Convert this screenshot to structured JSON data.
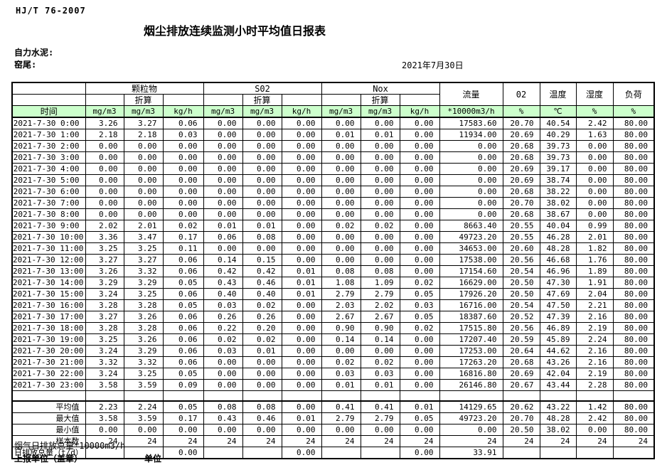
{
  "page": {
    "standard_code": "HJ/T  76-2007",
    "title": "烟尘排放连续监测小时平均值日报表",
    "company_label": "自力水泥:",
    "site_label": "窑尾:",
    "date": "2021年7月30日",
    "footnote": "烟气日排放总量*10000m3/h",
    "report_unit_label": "上报单位（盖章）",
    "unit_label": "单位"
  },
  "table": {
    "time_header": "时间",
    "groups": [
      {
        "label": "颗粒物"
      },
      {
        "label": "S02"
      },
      {
        "label": "Nox"
      }
    ],
    "zhesuan_label": "折算",
    "single_columns": [
      "流量",
      "02",
      "温度",
      "湿度",
      "负荷"
    ],
    "units": [
      "mg/m3",
      "mg/m3",
      "kg/h",
      "mg/m3",
      "mg/m3",
      "kg/h",
      "mg/m3",
      "mg/m3",
      "kg/h",
      "*10000m3/h",
      "%",
      "℃",
      "%",
      "%"
    ],
    "header_bg": "#ccffcc",
    "rows": [
      {
        "time": "2021-7-30 0:00",
        "values": [
          "3.26",
          "3.27",
          "0.06",
          "0.00",
          "0.00",
          "0.00",
          "0.00",
          "0.00",
          "0.00",
          "17583.60",
          "20.70",
          "40.54",
          "2.42",
          "80.00"
        ]
      },
      {
        "time": "2021-7-30 1:00",
        "values": [
          "2.18",
          "2.18",
          "0.03",
          "0.00",
          "0.00",
          "0.00",
          "0.01",
          "0.01",
          "0.00",
          "11934.00",
          "20.69",
          "40.29",
          "1.63",
          "80.00"
        ]
      },
      {
        "time": "2021-7-30 2:00",
        "values": [
          "0.00",
          "0.00",
          "0.00",
          "0.00",
          "0.00",
          "0.00",
          "0.00",
          "0.00",
          "0.00",
          "0.00",
          "20.68",
          "39.73",
          "0.00",
          "80.00"
        ]
      },
      {
        "time": "2021-7-30 3:00",
        "values": [
          "0.00",
          "0.00",
          "0.00",
          "0.00",
          "0.00",
          "0.00",
          "0.00",
          "0.00",
          "0.00",
          "0.00",
          "20.68",
          "39.73",
          "0.00",
          "80.00"
        ]
      },
      {
        "time": "2021-7-30 4:00",
        "values": [
          "0.00",
          "0.00",
          "0.00",
          "0.00",
          "0.00",
          "0.00",
          "0.00",
          "0.00",
          "0.00",
          "0.00",
          "20.69",
          "39.17",
          "0.00",
          "80.00"
        ]
      },
      {
        "time": "2021-7-30 5:00",
        "values": [
          "0.00",
          "0.00",
          "0.00",
          "0.00",
          "0.00",
          "0.00",
          "0.00",
          "0.00",
          "0.00",
          "0.00",
          "20.69",
          "38.74",
          "0.00",
          "80.00"
        ]
      },
      {
        "time": "2021-7-30 6:00",
        "values": [
          "0.00",
          "0.00",
          "0.00",
          "0.00",
          "0.00",
          "0.00",
          "0.00",
          "0.00",
          "0.00",
          "0.00",
          "20.68",
          "38.22",
          "0.00",
          "80.00"
        ]
      },
      {
        "time": "2021-7-30 7:00",
        "values": [
          "0.00",
          "0.00",
          "0.00",
          "0.00",
          "0.00",
          "0.00",
          "0.00",
          "0.00",
          "0.00",
          "0.00",
          "20.70",
          "38.02",
          "0.00",
          "80.00"
        ]
      },
      {
        "time": "2021-7-30 8:00",
        "values": [
          "0.00",
          "0.00",
          "0.00",
          "0.00",
          "0.00",
          "0.00",
          "0.00",
          "0.00",
          "0.00",
          "0.00",
          "20.68",
          "38.67",
          "0.00",
          "80.00"
        ]
      },
      {
        "time": "2021-7-30 9:00",
        "values": [
          "2.02",
          "2.01",
          "0.02",
          "0.01",
          "0.01",
          "0.00",
          "0.02",
          "0.02",
          "0.00",
          "8663.40",
          "20.55",
          "40.04",
          "0.99",
          "80.00"
        ]
      },
      {
        "time": "2021-7-30 10:00",
        "values": [
          "3.36",
          "3.47",
          "0.17",
          "0.06",
          "0.08",
          "0.00",
          "0.00",
          "0.00",
          "0.00",
          "49723.20",
          "20.55",
          "46.28",
          "2.01",
          "80.00"
        ]
      },
      {
        "time": "2021-7-30 11:00",
        "values": [
          "3.25",
          "3.25",
          "0.11",
          "0.00",
          "0.00",
          "0.00",
          "0.00",
          "0.00",
          "0.00",
          "34653.00",
          "20.60",
          "48.28",
          "1.82",
          "80.00"
        ]
      },
      {
        "time": "2021-7-30 12:00",
        "values": [
          "3.27",
          "3.27",
          "0.06",
          "0.14",
          "0.15",
          "0.00",
          "0.00",
          "0.00",
          "0.00",
          "17538.00",
          "20.56",
          "46.68",
          "1.76",
          "80.00"
        ]
      },
      {
        "time": "2021-7-30 13:00",
        "values": [
          "3.26",
          "3.32",
          "0.06",
          "0.42",
          "0.42",
          "0.01",
          "0.08",
          "0.08",
          "0.00",
          "17154.60",
          "20.54",
          "46.96",
          "1.89",
          "80.00"
        ]
      },
      {
        "time": "2021-7-30 14:00",
        "values": [
          "3.29",
          "3.29",
          "0.05",
          "0.43",
          "0.46",
          "0.01",
          "1.08",
          "1.09",
          "0.02",
          "16629.00",
          "20.50",
          "47.30",
          "1.91",
          "80.00"
        ]
      },
      {
        "time": "2021-7-30 15:00",
        "values": [
          "3.24",
          "3.25",
          "0.06",
          "0.40",
          "0.40",
          "0.01",
          "2.79",
          "2.79",
          "0.05",
          "17926.20",
          "20.50",
          "47.69",
          "2.04",
          "80.00"
        ]
      },
      {
        "time": "2021-7-30 16:00",
        "values": [
          "3.28",
          "3.28",
          "0.05",
          "0.03",
          "0.02",
          "0.00",
          "2.03",
          "2.02",
          "0.03",
          "16716.00",
          "20.54",
          "47.50",
          "2.21",
          "80.00"
        ]
      },
      {
        "time": "2021-7-30 17:00",
        "values": [
          "3.27",
          "3.26",
          "0.06",
          "0.26",
          "0.26",
          "0.00",
          "2.67",
          "2.67",
          "0.05",
          "18387.60",
          "20.52",
          "47.39",
          "2.16",
          "80.00"
        ]
      },
      {
        "time": "2021-7-30 18:00",
        "values": [
          "3.28",
          "3.28",
          "0.06",
          "0.22",
          "0.20",
          "0.00",
          "0.90",
          "0.90",
          "0.02",
          "17515.80",
          "20.56",
          "46.89",
          "2.19",
          "80.00"
        ]
      },
      {
        "time": "2021-7-30 19:00",
        "values": [
          "3.25",
          "3.26",
          "0.06",
          "0.02",
          "0.02",
          "0.00",
          "0.14",
          "0.14",
          "0.00",
          "17207.40",
          "20.59",
          "45.89",
          "2.24",
          "80.00"
        ]
      },
      {
        "time": "2021-7-30 20:00",
        "values": [
          "3.24",
          "3.29",
          "0.06",
          "0.03",
          "0.01",
          "0.00",
          "0.00",
          "0.00",
          "0.00",
          "17253.00",
          "20.64",
          "44.62",
          "2.16",
          "80.00"
        ]
      },
      {
        "time": "2021-7-30 21:00",
        "values": [
          "3.32",
          "3.32",
          "0.06",
          "0.00",
          "0.00",
          "0.00",
          "0.02",
          "0.02",
          "0.00",
          "17263.20",
          "20.68",
          "43.26",
          "2.16",
          "80.00"
        ]
      },
      {
        "time": "2021-7-30 22:00",
        "values": [
          "3.24",
          "3.25",
          "0.05",
          "0.00",
          "0.00",
          "0.00",
          "0.03",
          "0.03",
          "0.00",
          "16816.80",
          "20.69",
          "42.04",
          "2.19",
          "80.00"
        ]
      },
      {
        "time": "2021-7-30 23:00",
        "values": [
          "3.58",
          "3.59",
          "0.09",
          "0.00",
          "0.00",
          "0.00",
          "0.01",
          "0.01",
          "0.00",
          "26146.80",
          "20.67",
          "43.44",
          "2.28",
          "80.00"
        ]
      }
    ],
    "summary": [
      {
        "label": "平均值",
        "values": [
          "2.23",
          "2.24",
          "0.05",
          "0.08",
          "0.08",
          "0.00",
          "0.41",
          "0.41",
          "0.01",
          "14129.65",
          "20.62",
          "43.22",
          "1.42",
          "80.00"
        ]
      },
      {
        "label": "最大值",
        "values": [
          "3.58",
          "3.59",
          "0.17",
          "0.43",
          "0.46",
          "0.01",
          "2.79",
          "2.79",
          "0.05",
          "49723.20",
          "20.70",
          "48.28",
          "2.42",
          "80.00"
        ]
      },
      {
        "label": "最小值",
        "values": [
          "0.00",
          "0.00",
          "0.00",
          "0.00",
          "0.00",
          "0.00",
          "0.00",
          "0.00",
          "0.00",
          "0.00",
          "20.50",
          "38.02",
          "0.00",
          "80.00"
        ]
      },
      {
        "label": "样本数",
        "values": [
          "24",
          "24",
          "24",
          "24",
          "24",
          "24",
          "24",
          "24",
          "24",
          "24",
          "24",
          "24",
          "24",
          "24"
        ]
      },
      {
        "label": "日排放总量（t/d）",
        "values": [
          "",
          "",
          "0.00",
          "",
          "",
          "0.00",
          "",
          "",
          "0.00",
          "33.91",
          "",
          "",
          "",
          ""
        ]
      }
    ]
  }
}
